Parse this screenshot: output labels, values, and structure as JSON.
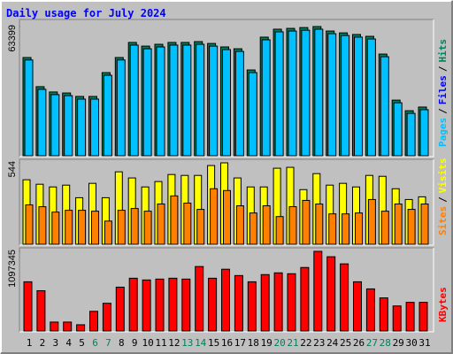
{
  "chart_data": [
    {
      "type": "bar",
      "title": "Daily usage for July 2024",
      "legend_separator": "/",
      "ylim": [
        0,
        63399
      ],
      "yticks": [
        63399
      ],
      "series": [
        {
          "name": "Hits",
          "color": "#00805c",
          "values": [
            48200,
            33900,
            31300,
            30800,
            29100,
            29100,
            40800,
            48200,
            55600,
            53800,
            54700,
            55600,
            55600,
            56000,
            55100,
            53400,
            52500,
            42100,
            58200,
            62100,
            62500,
            62900,
            63399,
            61200,
            60300,
            59500,
            58600,
            49900,
            27300,
            22100,
            23900
          ]
        },
        {
          "name": "Files",
          "color": "#0000ff",
          "values": [
            35200,
            27800,
            26500,
            20000,
            24300,
            15600,
            33000,
            33000,
            35200,
            35200,
            33000,
            35200,
            33000,
            35200,
            33000,
            33000,
            33000,
            30800,
            37300,
            39500,
            41700,
            39500,
            41700,
            39500,
            37300,
            36500,
            33000,
            28600,
            15600,
            11300,
            15600
          ]
        },
        {
          "name": "Pages",
          "color": "#00c0ff",
          "values": [
            47000,
            32600,
            30000,
            29500,
            27800,
            27800,
            39500,
            47000,
            54300,
            52500,
            53400,
            54300,
            54300,
            54700,
            53800,
            52100,
            51200,
            40800,
            56900,
            60800,
            61200,
            61600,
            62100,
            59900,
            59000,
            58200,
            57300,
            48600,
            26000,
            20800,
            22600
          ]
        }
      ]
    },
    {
      "type": "bar",
      "legend_separator": "/",
      "ylim": [
        0,
        544
      ],
      "yticks": [
        544
      ],
      "series": [
        {
          "name": "Visits",
          "color": "#ffff00",
          "values": [
            431,
            401,
            383,
            395,
            311,
            407,
            311,
            484,
            443,
            383,
            419,
            466,
            460,
            460,
            526,
            544,
            443,
            383,
            383,
            508,
            514,
            365,
            472,
            395,
            407,
            383,
            460,
            454,
            371,
            299,
            317
          ]
        },
        {
          "name": "Sites",
          "color": "#ff8000",
          "values": [
            263,
            251,
            215,
            227,
            227,
            221,
            155,
            227,
            239,
            221,
            269,
            323,
            275,
            233,
            371,
            359,
            257,
            209,
            257,
            185,
            251,
            293,
            269,
            203,
            203,
            209,
            299,
            221,
            269,
            233,
            269
          ]
        }
      ]
    },
    {
      "type": "bar",
      "ylim": [
        0,
        1097345
      ],
      "yticks": [
        1097345
      ],
      "categories": [
        "1",
        "2",
        "3",
        "4",
        "5",
        "6",
        "7",
        "8",
        "9",
        "10",
        "11",
        "12",
        "13",
        "14",
        "15",
        "16",
        "17",
        "18",
        "19",
        "20",
        "21",
        "22",
        "23",
        "24",
        "25",
        "26",
        "27",
        "28",
        "29",
        "30",
        "31"
      ],
      "category_colors": [
        "#000000",
        "#000000",
        "#000000",
        "#000000",
        "#000000",
        "#00805c",
        "#00805c",
        "#000000",
        "#000000",
        "#000000",
        "#000000",
        "#000000",
        "#00805c",
        "#00805c",
        "#000000",
        "#000000",
        "#000000",
        "#000000",
        "#000000",
        "#00805c",
        "#00805c",
        "#000000",
        "#000000",
        "#000000",
        "#000000",
        "#000000",
        "#00805c",
        "#00805c",
        "#000000",
        "#000000",
        "#000000"
      ],
      "series": [
        {
          "name": "KBytes",
          "color": "#ff0000",
          "values": [
            678000,
            555000,
            123000,
            123000,
            86000,
            271000,
            382000,
            604000,
            727000,
            703000,
            715000,
            727000,
            715000,
            888000,
            727000,
            851000,
            764000,
            678000,
            777000,
            801000,
            789000,
            875000,
            1097345,
            1023000,
            925000,
            678000,
            580000,
            456000,
            345000,
            395000,
            395000
          ]
        }
      ]
    }
  ]
}
